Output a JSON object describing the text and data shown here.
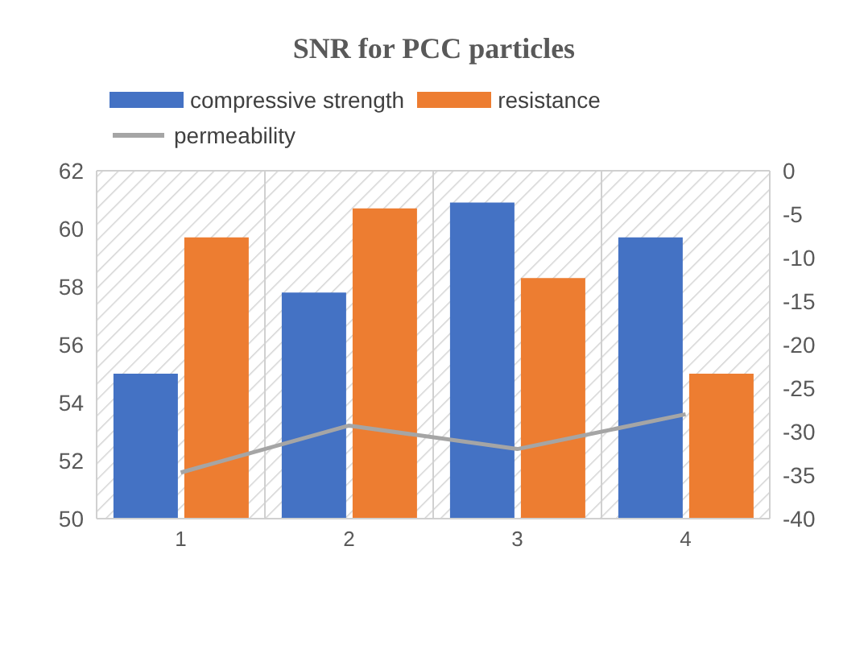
{
  "chart_data": {
    "type": "bar",
    "title": "SNR for PCC particles",
    "categories": [
      "1",
      "2",
      "3",
      "4"
    ],
    "series": [
      {
        "name": "compressive strength",
        "color": "#4472c4",
        "values": [
          55.0,
          57.8,
          60.9,
          59.7
        ]
      },
      {
        "name": "resistance",
        "color": "#ed7d31",
        "values": [
          59.7,
          60.7,
          58.3,
          55.0
        ]
      },
      {
        "name": "permeability",
        "type": "line",
        "axis": "y2",
        "color": "#a5a5a5",
        "values": [
          -34.7,
          -29.3,
          -32.0,
          -28.0
        ]
      }
    ],
    "ylim": [
      50,
      62
    ],
    "yticks": [
      50,
      52,
      54,
      56,
      58,
      60,
      62
    ],
    "y2lim": [
      -40,
      0
    ],
    "y2ticks": [
      -40,
      -35,
      -30,
      -25,
      -20,
      -15,
      -10,
      -5,
      0
    ],
    "grid": true,
    "legend": "top",
    "marker": "none",
    "line_style": "solid"
  }
}
